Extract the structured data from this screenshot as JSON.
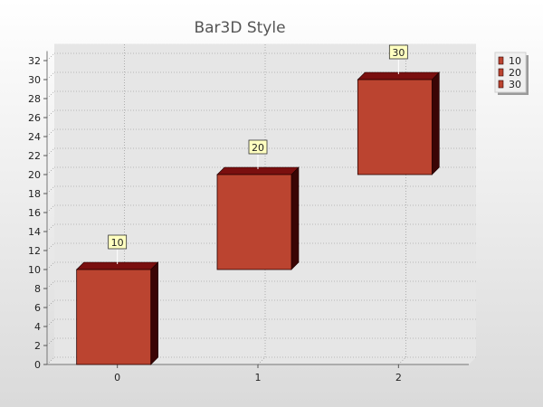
{
  "chart_data": {
    "type": "bar",
    "style": "3d",
    "title": "Bar3D Style",
    "xlabel": "",
    "ylabel": "",
    "categories": [
      "0",
      "1",
      "2"
    ],
    "series": [
      {
        "label": "10",
        "range": [
          0,
          10
        ],
        "data_label": "10"
      },
      {
        "label": "20",
        "range": [
          10,
          20
        ],
        "data_label": "20"
      },
      {
        "label": "30",
        "range": [
          20,
          30
        ],
        "data_label": "30"
      }
    ],
    "ylim": [
      0,
      33
    ],
    "yticks": [
      0,
      2,
      4,
      6,
      8,
      10,
      12,
      14,
      16,
      18,
      20,
      22,
      24,
      26,
      28,
      30,
      32
    ],
    "grid": true,
    "legend_position": "top-right",
    "colors": {
      "bar_front": "#bb4430",
      "bar_top": "#7a0f0f",
      "bar_side": "#3a0505",
      "background_top": "#ffffff",
      "background_bottom": "#dcdcdc",
      "plot_background": "#e6e6e6",
      "label_box": "#ffffc0"
    }
  }
}
